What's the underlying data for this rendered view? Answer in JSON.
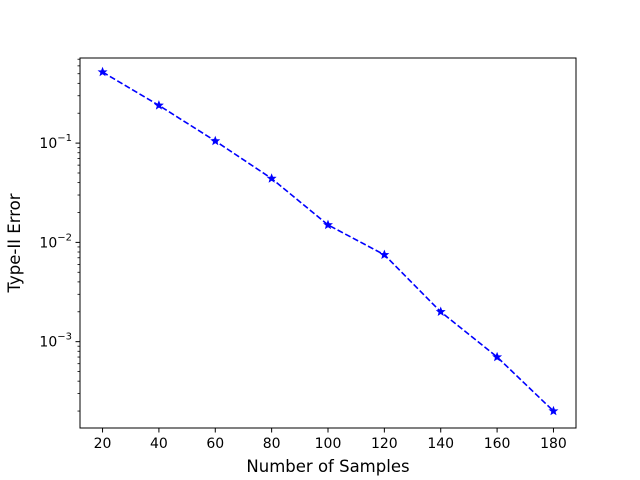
{
  "chart_data": {
    "type": "line",
    "title": "",
    "xlabel": "Number of Samples",
    "ylabel": "Type-II Error",
    "yscale": "log",
    "xlim": [
      12,
      188
    ],
    "ylim": [
      0.000135,
      0.72
    ],
    "x_ticks": [
      20,
      40,
      60,
      80,
      100,
      120,
      140,
      160,
      180
    ],
    "x_tick_labels": [
      "20",
      "40",
      "60",
      "80",
      "100",
      "120",
      "140",
      "160",
      "180"
    ],
    "y_ticks": [
      0.001,
      0.01,
      0.1
    ],
    "y_tick_labels": [
      {
        "base": "10",
        "exp": "−3"
      },
      {
        "base": "10",
        "exp": "−2"
      },
      {
        "base": "10",
        "exp": "−1"
      }
    ],
    "grid": false,
    "legend": "none",
    "series": [
      {
        "line_style": "dashed",
        "marker": "star",
        "color": "#0000ff",
        "x": [
          20,
          40,
          60,
          80,
          100,
          120,
          140,
          160,
          180
        ],
        "values": [
          0.52,
          0.24,
          0.105,
          0.044,
          0.015,
          0.0075,
          0.002,
          0.0007,
          0.0002
        ]
      }
    ]
  }
}
